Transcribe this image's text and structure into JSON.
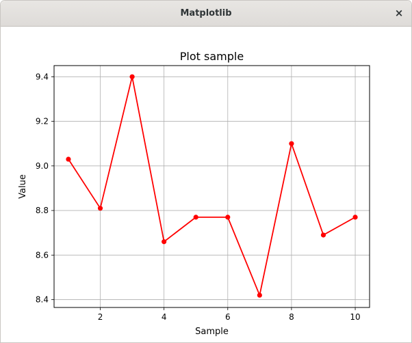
{
  "window": {
    "title": "Matplotlib",
    "close_glyph": "×"
  },
  "chart_data": {
    "type": "line",
    "title": "Plot sample",
    "xlabel": "Sample",
    "ylabel": "Value",
    "xlim": [
      0.55,
      10.45
    ],
    "ylim": [
      8.365,
      9.45
    ],
    "x_ticks": [
      2,
      4,
      6,
      8,
      10
    ],
    "y_ticks": [
      8.4,
      8.6,
      8.8,
      9.0,
      9.2,
      9.4
    ],
    "x_tick_labels": [
      "2",
      "4",
      "6",
      "8",
      "10"
    ],
    "y_tick_labels": [
      "8.4",
      "8.6",
      "8.8",
      "9.0",
      "9.2",
      "9.4"
    ],
    "grid": true,
    "legend": "none",
    "series": [
      {
        "x": [
          1,
          2,
          3,
          4,
          5,
          6,
          7,
          8,
          9,
          10
        ],
        "y": [
          9.03,
          8.81,
          9.4,
          8.66,
          8.77,
          8.77,
          8.42,
          9.1,
          8.69,
          8.77
        ],
        "color": "#ff0000",
        "marker": "circle"
      }
    ]
  }
}
